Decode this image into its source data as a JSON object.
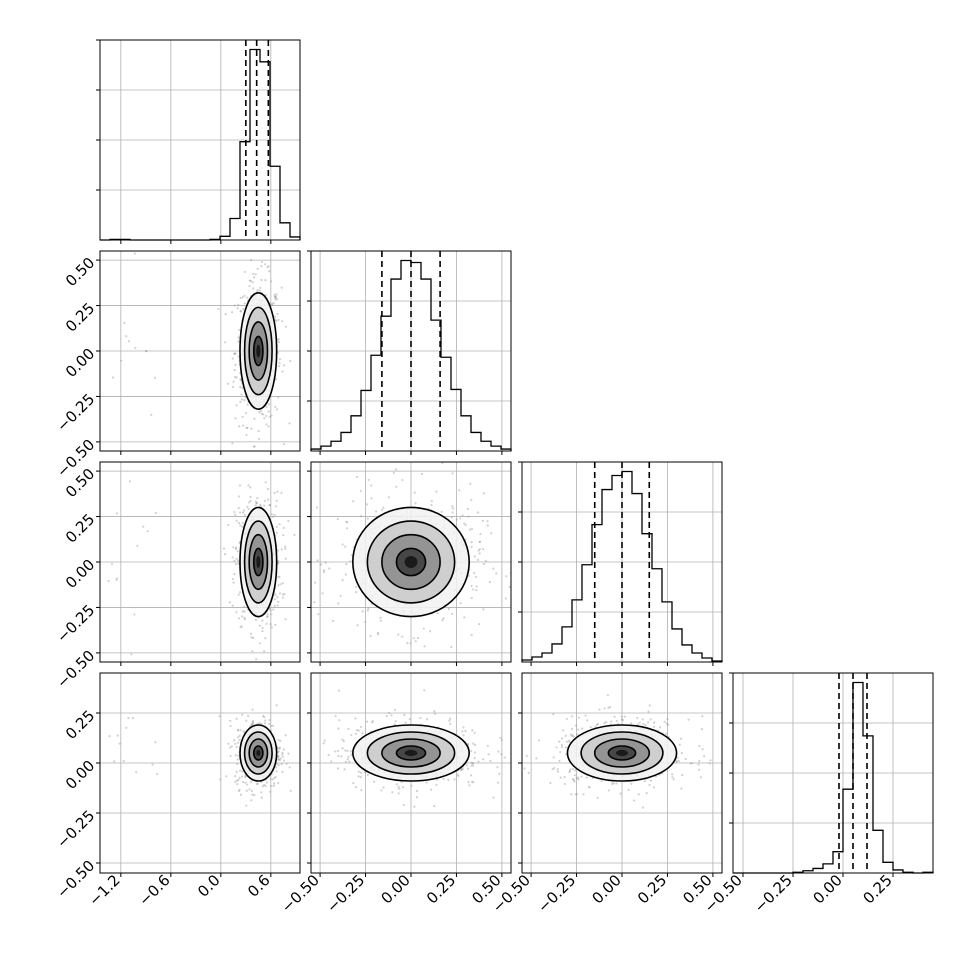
{
  "chart_data": {
    "type": "corner",
    "title": "",
    "grid": true,
    "n_params": 4,
    "params": [
      {
        "range": [
          -1.45,
          0.95
        ],
        "ticks": [
          -1.2,
          -0.6,
          0.0,
          0.6
        ],
        "tick_labels": [
          "−1.2",
          "−0.6",
          "0.0",
          "0.6"
        ],
        "quantiles": [
          0.3,
          0.43,
          0.57
        ],
        "hist_bins": [
          -1.45,
          -1.33,
          -1.21,
          -1.09,
          -0.97,
          -0.85,
          -0.73,
          -0.61,
          -0.49,
          -0.37,
          -0.25,
          -0.13,
          -0.01,
          0.11,
          0.23,
          0.35,
          0.47,
          0.59,
          0.71,
          0.83,
          0.95
        ],
        "hist_counts": [
          0,
          1,
          1,
          0,
          0,
          0,
          0,
          0,
          0,
          0,
          0,
          1,
          6,
          35,
          160,
          310,
          290,
          120,
          28,
          5
        ]
      },
      {
        "range": [
          -0.55,
          0.55
        ],
        "ticks": [
          -0.5,
          -0.25,
          0.0,
          0.25,
          0.5
        ],
        "tick_labels": [
          "−0.50",
          "−0.25",
          "0.00",
          "0.25",
          "0.50"
        ],
        "quantiles": [
          -0.16,
          0.0,
          0.16
        ],
        "hist_bins": [
          -0.55,
          -0.495,
          -0.44,
          -0.385,
          -0.33,
          -0.275,
          -0.22,
          -0.165,
          -0.11,
          -0.055,
          0.0,
          0.055,
          0.11,
          0.165,
          0.22,
          0.275,
          0.33,
          0.385,
          0.44,
          0.495,
          0.55
        ],
        "hist_counts": [
          2,
          5,
          10,
          19,
          36,
          62,
          98,
          138,
          176,
          195,
          193,
          176,
          134,
          96,
          63,
          36,
          19,
          10,
          5,
          2
        ]
      },
      {
        "range": [
          -0.55,
          0.55
        ],
        "ticks": [
          -0.5,
          -0.25,
          0.0,
          0.25,
          0.5
        ],
        "tick_labels": [
          "−0.50",
          "−0.25",
          "0.00",
          "0.25",
          "0.50"
        ],
        "quantiles": [
          -0.15,
          0.0,
          0.15
        ],
        "hist_bins": [
          -0.55,
          -0.495,
          -0.44,
          -0.385,
          -0.33,
          -0.275,
          -0.22,
          -0.165,
          -0.11,
          -0.055,
          0.0,
          0.055,
          0.11,
          0.165,
          0.22,
          0.275,
          0.33,
          0.385,
          0.44,
          0.495,
          0.55
        ],
        "hist_counts": [
          2,
          5,
          9,
          18,
          35,
          62,
          97,
          137,
          172,
          186,
          190,
          168,
          128,
          93,
          60,
          33,
          17,
          9,
          4,
          1
        ]
      },
      {
        "range": [
          -0.55,
          0.45
        ],
        "ticks": [
          -0.5,
          -0.25,
          0.0,
          0.25
        ],
        "tick_labels": [
          "−0.50",
          "−0.25",
          "0.00",
          "0.25"
        ],
        "quantiles": [
          -0.02,
          0.05,
          0.12
        ],
        "hist_bins": [
          -0.55,
          -0.5,
          -0.45,
          -0.4,
          -0.35,
          -0.3,
          -0.25,
          -0.2,
          -0.15,
          -0.1,
          -0.05,
          0.0,
          0.05,
          0.1,
          0.15,
          0.2,
          0.25,
          0.3,
          0.35,
          0.4,
          0.45
        ],
        "hist_counts": [
          0,
          0,
          0,
          0,
          0,
          0,
          1,
          3,
          6,
          12,
          28,
          110,
          250,
          180,
          56,
          14,
          4,
          1,
          0,
          1
        ]
      }
    ],
    "panel_order": [
      [
        [
          0,
          0
        ]
      ],
      [
        [
          1,
          0
        ],
        [
          1,
          1
        ]
      ],
      [
        [
          2,
          0
        ],
        [
          2,
          1
        ],
        [
          2,
          2
        ]
      ],
      [
        [
          3,
          0
        ],
        [
          3,
          1
        ],
        [
          3,
          2
        ],
        [
          3,
          3
        ]
      ]
    ],
    "pairs": [
      {
        "row": 1,
        "col": 0,
        "mean": [
          0.45,
          0.0
        ],
        "sd": [
          0.11,
          0.16
        ],
        "outliers": 12
      },
      {
        "row": 2,
        "col": 0,
        "mean": [
          0.45,
          0.0
        ],
        "sd": [
          0.11,
          0.15
        ],
        "outliers": 12
      },
      {
        "row": 2,
        "col": 1,
        "mean": [
          0.0,
          0.0
        ],
        "sd": [
          0.16,
          0.15
        ],
        "outliers": 0
      },
      {
        "row": 3,
        "col": 0,
        "mean": [
          0.45,
          0.05
        ],
        "sd": [
          0.11,
          0.07
        ],
        "outliers": 12
      },
      {
        "row": 3,
        "col": 1,
        "mean": [
          0.0,
          0.05
        ],
        "sd": [
          0.16,
          0.07
        ],
        "outliers": 0
      },
      {
        "row": 3,
        "col": 2,
        "mean": [
          0.0,
          0.05
        ],
        "sd": [
          0.15,
          0.07
        ],
        "outliers": 0
      }
    ],
    "contour_levels_sigma": [
      0.5,
      1.0,
      1.5,
      2.0
    ],
    "colors": {
      "line": "#000000",
      "grid": "#b0b0b0",
      "points": "#9a9a9a",
      "density_dark": "#1a1a1a",
      "density_light": "#e6e6e6"
    }
  }
}
